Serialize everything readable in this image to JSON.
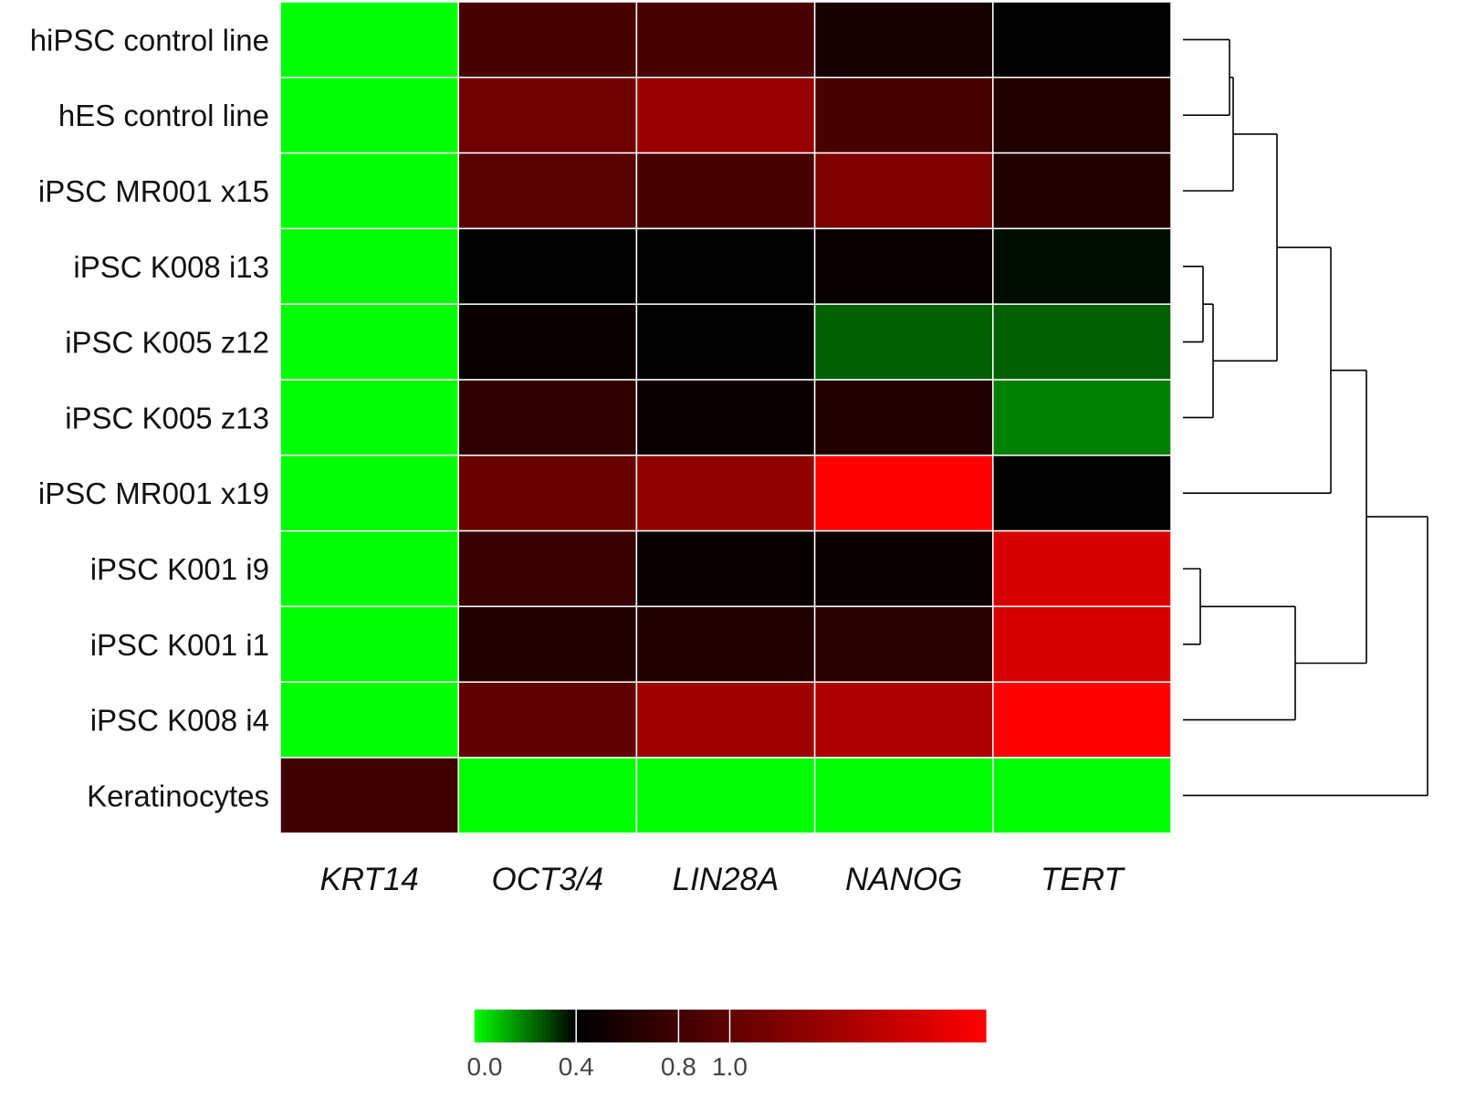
{
  "chart_data": {
    "type": "heatmap",
    "title": "",
    "xlabel": "",
    "ylabel": "",
    "rows": [
      "hiPSC control line",
      "hES control line",
      "iPSC MR001 x15",
      "iPSC K008 i13",
      "iPSC K005 z12",
      "iPSC K005 z13",
      "iPSC MR001 x19",
      "iPSC K001 i9",
      "iPSC K001 i1",
      "iPSC K008 i4",
      "Keratinocytes"
    ],
    "columns": [
      "KRT14",
      "OCT3/4",
      "LIN28A",
      "NANOG",
      "TERT"
    ],
    "values": [
      [
        0.0,
        0.85,
        0.85,
        0.55,
        0.4
      ],
      [
        0.0,
        1.1,
        1.35,
        0.85,
        0.6
      ],
      [
        0.0,
        0.95,
        0.85,
        1.2,
        0.6
      ],
      [
        0.0,
        0.4,
        0.4,
        0.45,
        0.38
      ],
      [
        0.0,
        0.47,
        0.4,
        0.25,
        0.25
      ],
      [
        0.0,
        0.7,
        0.47,
        0.6,
        0.2
      ],
      [
        0.0,
        1.05,
        1.3,
        2.0,
        0.4
      ],
      [
        0.0,
        0.75,
        0.45,
        0.47,
        1.75
      ],
      [
        0.0,
        0.6,
        0.6,
        0.65,
        1.75
      ],
      [
        0.0,
        1.0,
        1.4,
        1.5,
        2.0
      ],
      [
        0.8,
        0.0,
        0.0,
        0.0,
        0.0
      ]
    ],
    "colorscale": {
      "low": "#00ff00",
      "mid": "#000000",
      "high": "#ff0000",
      "domain": [
        0.0,
        0.4,
        2.0
      ]
    },
    "colorbar": {
      "ticks": [
        "0.0",
        "0.4",
        "0.8",
        "1.0"
      ],
      "tick_values": [
        0.0,
        0.4,
        0.8,
        1.0
      ]
    },
    "row_dendrogram": "right",
    "grid": true
  }
}
